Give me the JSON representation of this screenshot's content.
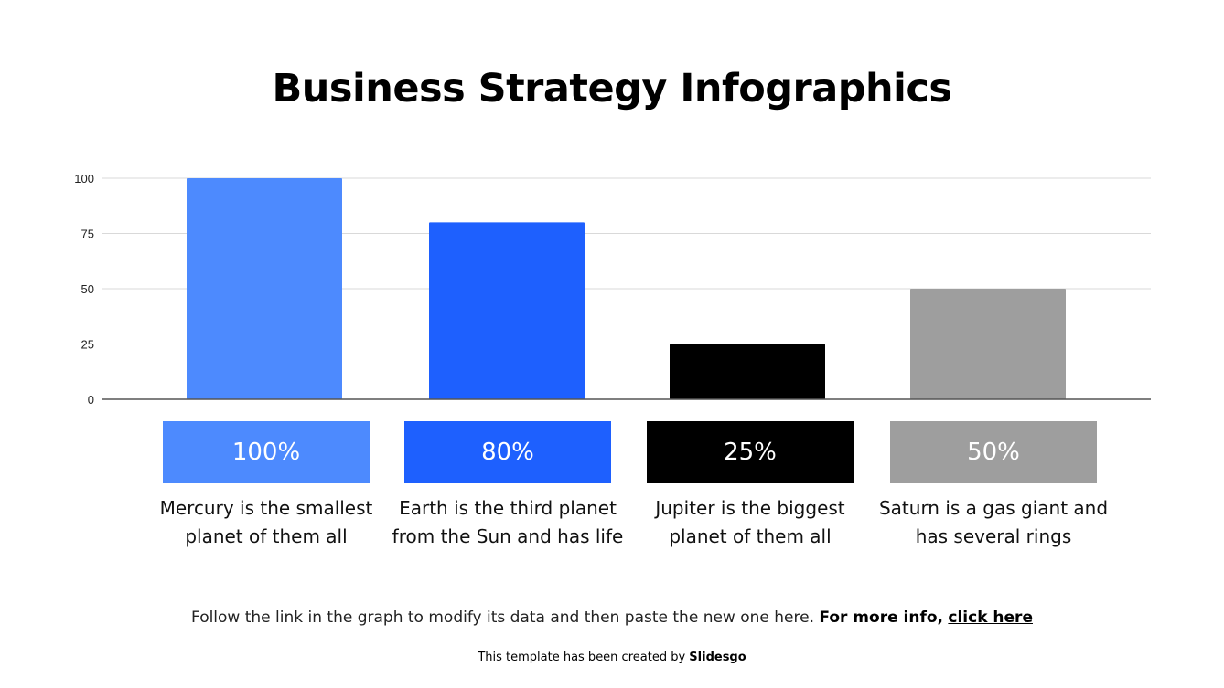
{
  "title": "Business Strategy Infographics",
  "chart_data": {
    "type": "bar",
    "categories": [
      "Mercury",
      "Earth",
      "Jupiter",
      "Saturn"
    ],
    "values": [
      100,
      80,
      25,
      50
    ],
    "colors": [
      "#4d8afe",
      "#1e60fe",
      "#000000",
      "#9e9e9e"
    ],
    "ylim": [
      0,
      100
    ],
    "yticks": [
      0,
      25,
      50,
      75,
      100
    ],
    "grid": true
  },
  "cards": [
    {
      "value": "100%",
      "text": "Mercury is the smallest planet of them all"
    },
    {
      "value": "80%",
      "text": "Earth is the third planet from the Sun and has life"
    },
    {
      "value": "25%",
      "text": "Jupiter is the biggest planet of them all"
    },
    {
      "value": "50%",
      "text": "Saturn is a gas giant and has several rings"
    }
  ],
  "footer": {
    "text": "Follow the link in the graph to modify its data and then paste the new one here.",
    "bold": "For more info,",
    "link": "click here"
  },
  "credit": {
    "text": "This template has been created by",
    "brand": "Slidesgo"
  }
}
